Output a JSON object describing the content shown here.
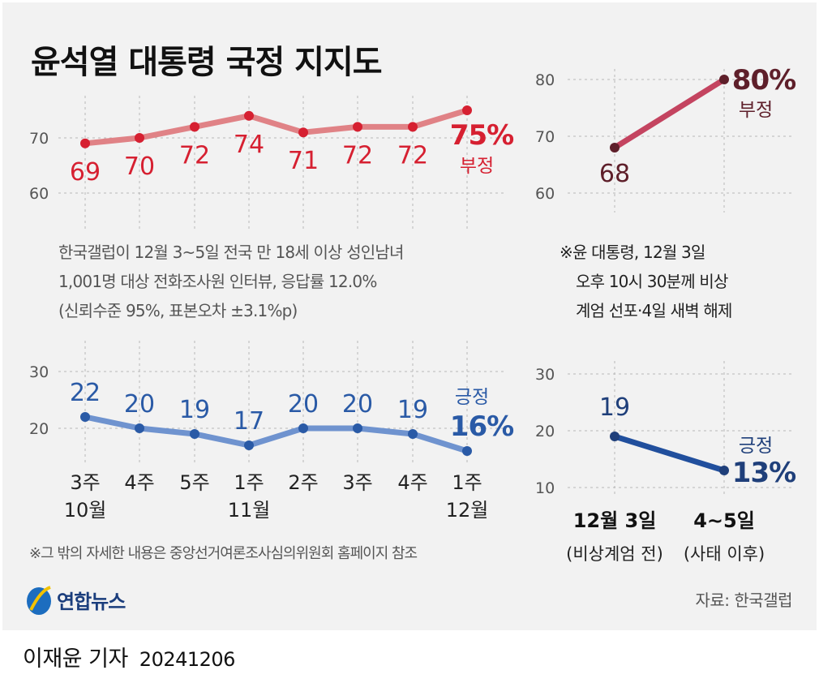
{
  "title": "윤석열 대통령 국정 지지도",
  "survey_note": [
    "한국갤럽이 12월 3~5일 전국 만 18세 이상 성인남녀",
    "1,001명 대상 전화조사원 인터뷰, 응답률 12.0%",
    "(신뢰수준 95%, 표본오차 ±3.1%p)"
  ],
  "martial_note": [
    "※윤 대통령, 12월 3일",
    "오후 10시 30분께 비상",
    "계엄 선포·4일 새벽 해제"
  ],
  "footnote": "※그 밖의 자세한 내용은 중앙선거여론조사심의위원회 홈페이지 참조",
  "source": "자료: 한국갤럽",
  "logo_text": "연합뉴스",
  "byline": {
    "author": "이재윤 기자",
    "date": "20241206"
  },
  "colors": {
    "negative_line": "#e08286",
    "negative_text": "#d62031",
    "positive_line": "#6f93cf",
    "positive_text": "#2a5aa6",
    "right_negative_line": "#c44460",
    "right_negative_text": "#5e1f2a",
    "right_positive_line": "#214f9d",
    "right_positive_text": "#1f3f7a",
    "grid": "#b8b8b8",
    "axis_text": "#555555"
  },
  "chart_data": [
    {
      "type": "line",
      "x": [
        "3주 10월",
        "4주",
        "5주",
        "1주 11월",
        "2주",
        "3주",
        "4주",
        "1주 12월"
      ],
      "series": [
        {
          "name": "부정",
          "values": [
            69,
            70,
            72,
            74,
            71,
            72,
            72,
            75
          ],
          "last_label": "75%"
        }
      ],
      "yticks": [
        60,
        70
      ],
      "ylim": [
        60,
        80
      ]
    },
    {
      "type": "line",
      "categories": [
        {
          "line1": "3주",
          "line2": "10월"
        },
        {
          "line1": "4주",
          "line2": ""
        },
        {
          "line1": "5주",
          "line2": ""
        },
        {
          "line1": "1주",
          "line2": "11월"
        },
        {
          "line1": "2주",
          "line2": ""
        },
        {
          "line1": "3주",
          "line2": ""
        },
        {
          "line1": "4주",
          "line2": ""
        },
        {
          "line1": "1주",
          "line2": "12월"
        }
      ],
      "series": [
        {
          "name": "긍정",
          "values": [
            22,
            20,
            19,
            17,
            20,
            20,
            19,
            16
          ],
          "last_label": "16%"
        }
      ],
      "yticks": [
        20,
        30
      ],
      "ylim": [
        15,
        30
      ]
    },
    {
      "type": "line",
      "x": [
        "12월 3일",
        "4~5일"
      ],
      "series": [
        {
          "name": "부정",
          "values": [
            68,
            80
          ],
          "last_label": "80%"
        }
      ],
      "yticks": [
        60,
        70,
        80
      ],
      "ylim": [
        60,
        80
      ]
    },
    {
      "type": "line",
      "categories": [
        {
          "line1": "12월 3일",
          "line2": "(비상계엄 전)"
        },
        {
          "line1": "4~5일",
          "line2": "(사태 이후)"
        }
      ],
      "series": [
        {
          "name": "긍정",
          "values": [
            19,
            13
          ],
          "last_label": "13%"
        }
      ],
      "yticks": [
        10,
        20,
        30
      ],
      "ylim": [
        10,
        30
      ]
    }
  ]
}
